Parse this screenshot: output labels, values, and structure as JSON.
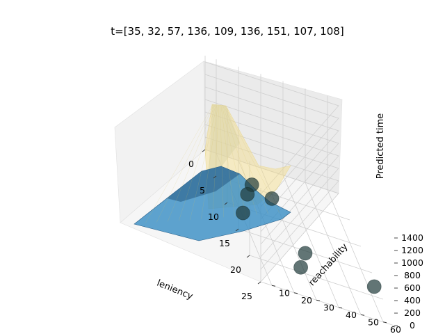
{
  "chart_data": {
    "type": "surface3d",
    "title": "t=[35, 32, 57, 136, 109, 136, 151, 107, 108]",
    "xlabel": "leniency",
    "ylabel": "reachability",
    "zlabel": "Predicted time",
    "xlim": [
      0,
      25
    ],
    "ylim": [
      5,
      65
    ],
    "zlim": [
      0,
      1500
    ],
    "x_ticks": [
      "0",
      "5",
      "10",
      "15",
      "20",
      "25"
    ],
    "y_ticks": [
      "10",
      "20",
      "30",
      "40",
      "50",
      "60"
    ],
    "z_ticks": [
      "0",
      "200",
      "400",
      "600",
      "800",
      "1000",
      "1200",
      "1400"
    ],
    "colors": {
      "blue_surface": "#3a8fc4",
      "yellow_surface": "#f3dc86",
      "points": "#1f3b3b"
    },
    "grid": true,
    "points": [
      {
        "x": 6,
        "y": 20,
        "z": 120
      },
      {
        "x": 8,
        "y": 16,
        "z": 90
      },
      {
        "x": 8,
        "y": 27,
        "z": 150
      },
      {
        "x": 12,
        "y": 10,
        "z": 60
      },
      {
        "x": 18,
        "y": 32,
        "z": 180
      },
      {
        "x": 21,
        "y": 27,
        "z": 150
      },
      {
        "x": 22,
        "y": 59,
        "z": 300
      }
    ]
  }
}
